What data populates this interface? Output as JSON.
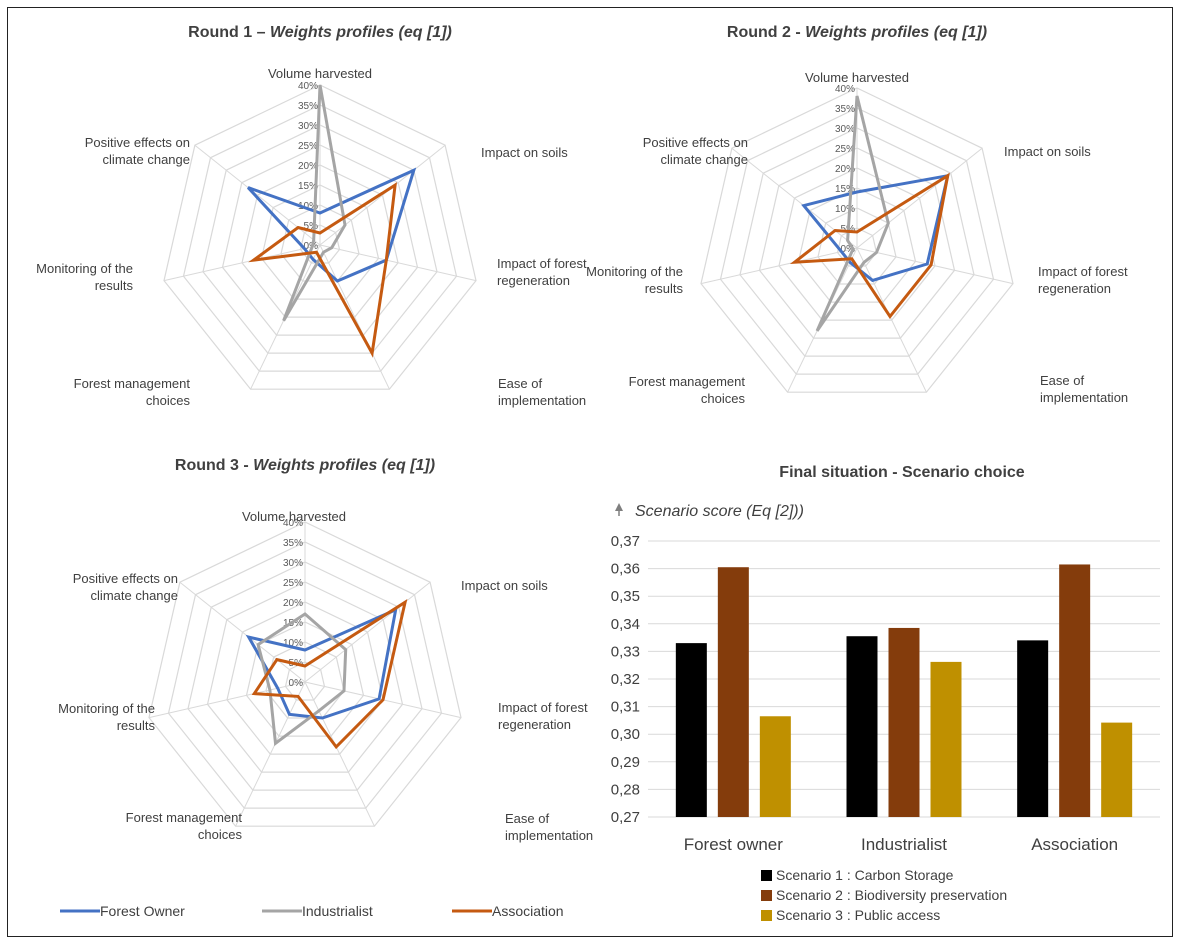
{
  "chart_data": [
    {
      "type": "radar",
      "title": "Round 1 – ",
      "title_emph": "Weights profiles (eq [1])",
      "axes": [
        "Volume harvested",
        "Impact on soils",
        "Impact of forest regeneration",
        "Ease of implementation",
        "Forest management choices",
        "Monitoring of the results",
        "Positive effects on climate change"
      ],
      "axis_label_lines": [
        [
          "Volume harvested"
        ],
        [
          "Impact on soils"
        ],
        [
          "Impact of forest",
          "regeneration"
        ],
        [
          "Ease of",
          "implementation"
        ],
        [
          "Forest management",
          "choices"
        ],
        [
          "Monitoring of the",
          "results"
        ],
        [
          "Positive effects on",
          "climate change"
        ]
      ],
      "ticks": [
        "0%",
        "5%",
        "10%",
        "15%",
        "20%",
        "25%",
        "30%",
        "35%",
        "40%"
      ],
      "rmax": 40,
      "series": [
        {
          "name": "Forest Owner",
          "values": [
            8,
            30,
            17,
            10,
            4,
            4,
            23
          ]
        },
        {
          "name": "Industrialist",
          "values": [
            40,
            8,
            3,
            2,
            21,
            2,
            2
          ]
        },
        {
          "name": "Association",
          "values": [
            3,
            24,
            17,
            30,
            2,
            17,
            7
          ]
        }
      ]
    },
    {
      "type": "radar",
      "title": "Round 2 - ",
      "title_emph": "Weights profiles (eq [1])",
      "axes": [
        "Volume harvested",
        "Impact on soils",
        "Impact of forest regeneration",
        "Ease of implementation",
        "Forest management choices",
        "Monitoring of the results",
        "Positive effects on climate change"
      ],
      "axis_label_lines": [
        [
          "Volume harvested"
        ],
        [
          "Impact on soils"
        ],
        [
          "Impact of forest",
          "regeneration"
        ],
        [
          "Ease of",
          "implementation"
        ],
        [
          "Forest management",
          "choices"
        ],
        [
          "Monitoring of the",
          "results"
        ],
        [
          "Positive effects on",
          "climate change"
        ]
      ],
      "ticks": [
        "0%",
        "5%",
        "10%",
        "15%",
        "20%",
        "25%",
        "30%",
        "35%",
        "40%"
      ],
      "rmax": 40,
      "series": [
        {
          "name": "Forest Owner",
          "values": [
            14,
            29,
            18,
            9,
            4,
            4,
            17
          ]
        },
        {
          "name": "Industrialist",
          "values": [
            38,
            10,
            5,
            4,
            23,
            1,
            3
          ]
        },
        {
          "name": "Association",
          "values": [
            4,
            29,
            19,
            19,
            3,
            16,
            7
          ]
        }
      ]
    },
    {
      "type": "radar",
      "title": "Round 3 - ",
      "title_emph": "Weights profiles (eq [1])",
      "axes": [
        "Volume harvested",
        "Impact on soils",
        "Impact of forest regeneration",
        "Ease of implementation",
        "Forest management choices",
        "Monitoring of the results",
        "Positive effects on climate change"
      ],
      "axis_label_lines": [
        [
          "Volume harvested"
        ],
        [
          "Impact on soils"
        ],
        [
          "Impact of forest",
          "regeneration"
        ],
        [
          "Ease of",
          "implementation"
        ],
        [
          "Forest management",
          "choices"
        ],
        [
          "Monitoring of the",
          "results"
        ],
        [
          "Positive effects on",
          "climate change"
        ]
      ],
      "ticks": [
        "0%",
        "5%",
        "10%",
        "15%",
        "20%",
        "25%",
        "30%",
        "35%",
        "40%"
      ],
      "rmax": 40,
      "series": [
        {
          "name": "Forest Owner",
          "values": [
            8,
            29,
            19,
            10,
            9,
            7,
            18
          ]
        },
        {
          "name": "Industrialist",
          "values": [
            17,
            13,
            10,
            8,
            17,
            9,
            15
          ]
        },
        {
          "name": "Association",
          "values": [
            4,
            32,
            20,
            18,
            4,
            13,
            9
          ]
        }
      ]
    },
    {
      "type": "bar",
      "title": "Final situation - Scenario choice",
      "ylabel": "Scenario score (Eq [2]))",
      "categories": [
        "Forest owner",
        "Industrialist",
        "Association"
      ],
      "ylim": [
        0.27,
        0.37
      ],
      "ticks": [
        "0,27",
        "0,28",
        "0,29",
        "0,30",
        "0,31",
        "0,32",
        "0,33",
        "0,34",
        "0,35",
        "0,36",
        "0,37"
      ],
      "grid": true,
      "legend_position": "bottom",
      "series": [
        {
          "name": "Scenario 1 : Carbon Storage",
          "values": [
            0.333,
            0.3355,
            0.334
          ]
        },
        {
          "name": "Scenario 2 : Biodiversity preservation",
          "values": [
            0.3605,
            0.3385,
            0.3615
          ]
        },
        {
          "name": "Scenario 3 : Public access",
          "values": [
            0.3065,
            0.3262,
            0.3042
          ]
        }
      ]
    }
  ],
  "colors": {
    "forest_owner": "#4472C4",
    "industrialist": "#A5A5A5",
    "association": "#C55A11",
    "scenario1": "#000000",
    "scenario2": "#843C0C",
    "scenario3": "#BF9000",
    "grid": "#D9D9D9"
  },
  "legend": {
    "entries": [
      "Forest Owner",
      "Industrialist",
      "Association"
    ]
  }
}
